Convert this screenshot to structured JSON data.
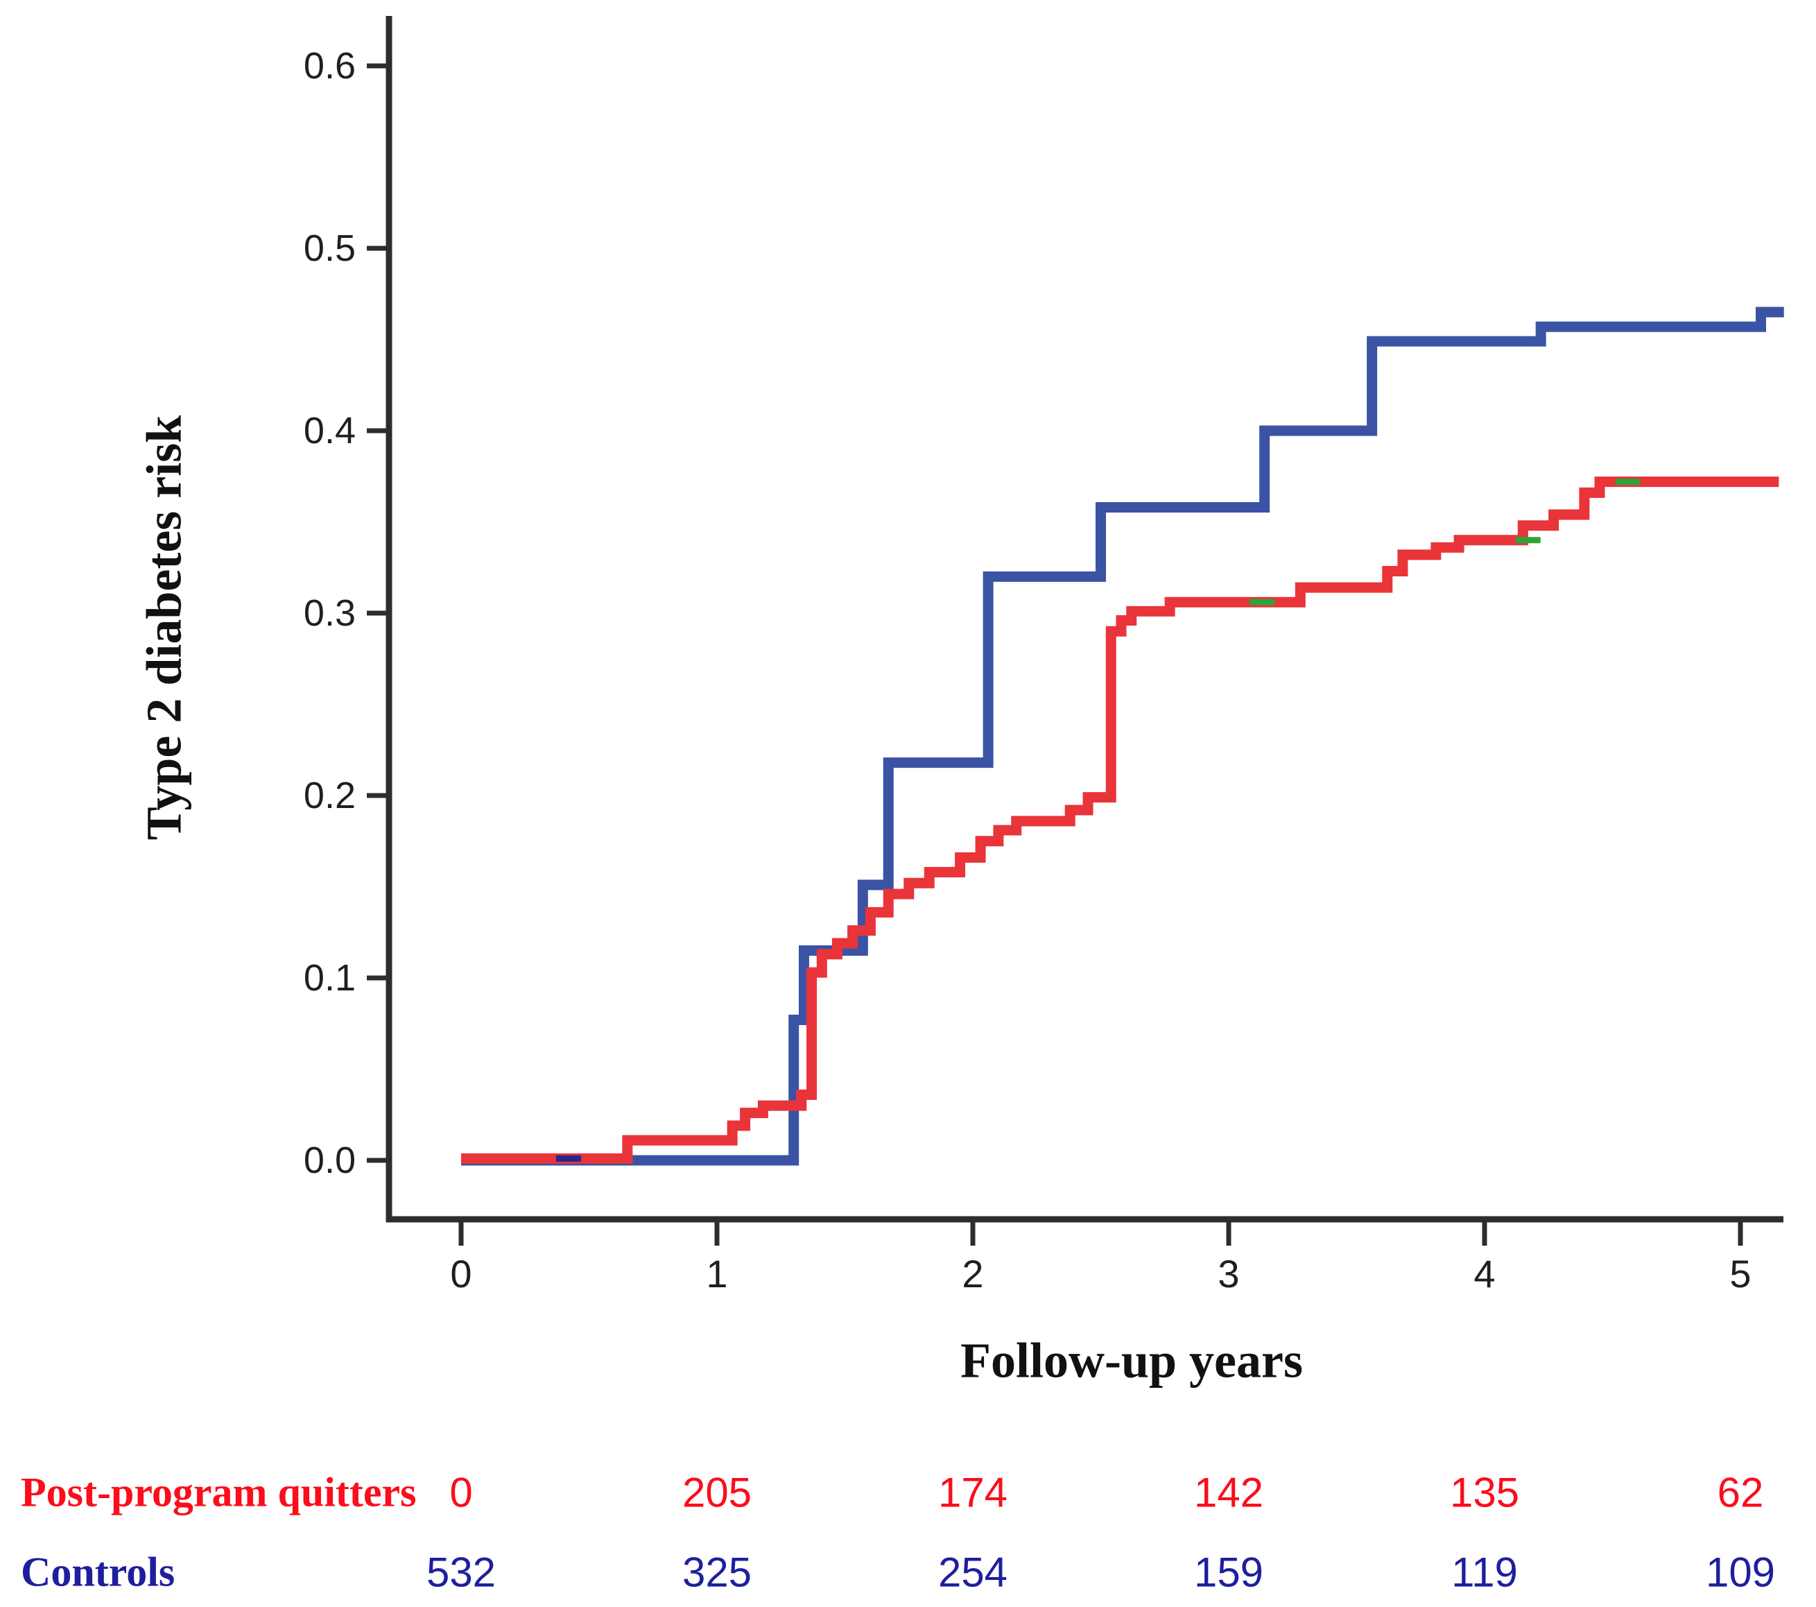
{
  "chart_data": {
    "type": "line",
    "subtype": "kaplan-meier-cumulative-risk-step",
    "title": "",
    "xlabel": "Follow-up years",
    "ylabel": "Type 2 diabetes risk",
    "xlim": [
      0,
      5.17
    ],
    "ylim": [
      0.0,
      0.6
    ],
    "grid": false,
    "legend_position": "none",
    "x_axis": {
      "tick_labels": [
        "0",
        "1",
        "2",
        "3",
        "4",
        "5"
      ],
      "tick_values": [
        0,
        1,
        2,
        3,
        4,
        5
      ]
    },
    "y_axis": {
      "tick_labels": [
        "0.6",
        "0.5",
        "0.4",
        "0.3",
        "0.2",
        "0.1",
        "0.0"
      ],
      "tick_values": [
        0.6,
        0.5,
        0.4,
        0.3,
        0.2,
        0.1,
        0.0
      ]
    },
    "series": [
      {
        "name": "Controls",
        "color": "#3A53A4",
        "line_width": 15,
        "end_time": 5.17,
        "points": [
          [
            0,
            0.0
          ],
          [
            1.3,
            0.077
          ],
          [
            1.34,
            0.115
          ],
          [
            1.57,
            0.151
          ],
          [
            1.67,
            0.218
          ],
          [
            2.06,
            0.32
          ],
          [
            2.5,
            0.358
          ],
          [
            3.14,
            0.4
          ],
          [
            3.56,
            0.449
          ],
          [
            4.22,
            0.457
          ],
          [
            5.08,
            0.465
          ]
        ]
      },
      {
        "name": "Post-program quitters",
        "color": "#E93439",
        "line_width": 15,
        "end_time": 5.15,
        "points": [
          [
            0,
            0.001
          ],
          [
            0.65,
            0.011
          ],
          [
            1.06,
            0.019
          ],
          [
            1.11,
            0.026
          ],
          [
            1.18,
            0.03
          ],
          [
            1.33,
            0.036
          ],
          [
            1.37,
            0.103
          ],
          [
            1.41,
            0.113
          ],
          [
            1.47,
            0.119
          ],
          [
            1.53,
            0.126
          ],
          [
            1.6,
            0.136
          ],
          [
            1.67,
            0.146
          ],
          [
            1.75,
            0.152
          ],
          [
            1.83,
            0.158
          ],
          [
            1.95,
            0.166
          ],
          [
            2.03,
            0.175
          ],
          [
            2.1,
            0.181
          ],
          [
            2.17,
            0.186
          ],
          [
            2.38,
            0.192
          ],
          [
            2.45,
            0.199
          ],
          [
            2.54,
            0.29
          ],
          [
            2.58,
            0.296
          ],
          [
            2.62,
            0.301
          ],
          [
            2.77,
            0.306
          ],
          [
            3.28,
            0.314
          ],
          [
            3.62,
            0.323
          ],
          [
            3.68,
            0.332
          ],
          [
            3.81,
            0.336
          ],
          [
            3.9,
            0.34
          ],
          [
            4.15,
            0.348
          ],
          [
            4.27,
            0.354
          ],
          [
            4.39,
            0.366
          ],
          [
            4.45,
            0.372
          ]
        ]
      }
    ],
    "censor_marks": [
      {
        "series": "Controls",
        "color": "#23268F",
        "t": 0.42,
        "value": 0.001
      },
      {
        "series": "Post-program quitters",
        "color": "#2FA33A",
        "t": 3.13,
        "value": 0.306
      },
      {
        "series": "Post-program quitters",
        "color": "#2FA33A",
        "t": 4.17,
        "value": 0.34
      },
      {
        "series": "Post-program quitters",
        "color": "#2FA33A",
        "t": 4.56,
        "value": 0.372
      }
    ]
  },
  "risk_table": {
    "time_points": [
      0,
      1,
      2,
      3,
      4,
      5
    ],
    "rows": [
      {
        "label": "Post-program quitters",
        "color": "#FB0D1B",
        "values": [
          "0",
          "205",
          "174",
          "142",
          "135",
          "62"
        ]
      },
      {
        "label": "Controls",
        "color": "#1D1F9E",
        "values": [
          "532",
          "325",
          "254",
          "159",
          "119",
          "109"
        ]
      }
    ]
  },
  "axis_style": {
    "line_color": "#2D2D2D",
    "tick_color": "#2D2D2D"
  }
}
